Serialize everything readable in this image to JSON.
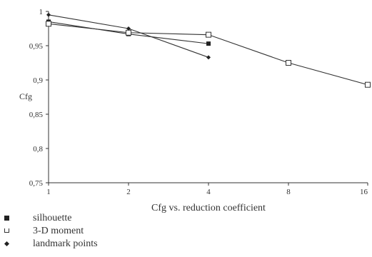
{
  "chart_data": {
    "type": "line",
    "xlabel": "Cfg vs. reduction coefficient",
    "ylabel": "Cfg",
    "x_scale": "categorical",
    "categories": [
      "1",
      "2",
      "4",
      "8",
      "16"
    ],
    "yticks": [
      "0,75",
      "0,8",
      "0,85",
      "0,9",
      "0,95",
      "1"
    ],
    "ylim": [
      0.75,
      1.0
    ],
    "grid": false,
    "legend_position": "bottom-left",
    "series": [
      {
        "name": "silhouette",
        "marker": "filled-square",
        "values": [
          0.985,
          0.967,
          0.953,
          null,
          null
        ]
      },
      {
        "name": "3-D moment",
        "marker": "open-square",
        "values": [
          0.982,
          0.969,
          0.966,
          0.925,
          0.893
        ]
      },
      {
        "name": "landmark points",
        "marker": "filled-diamond",
        "values": [
          0.995,
          0.975,
          0.933,
          null,
          null
        ]
      }
    ]
  }
}
